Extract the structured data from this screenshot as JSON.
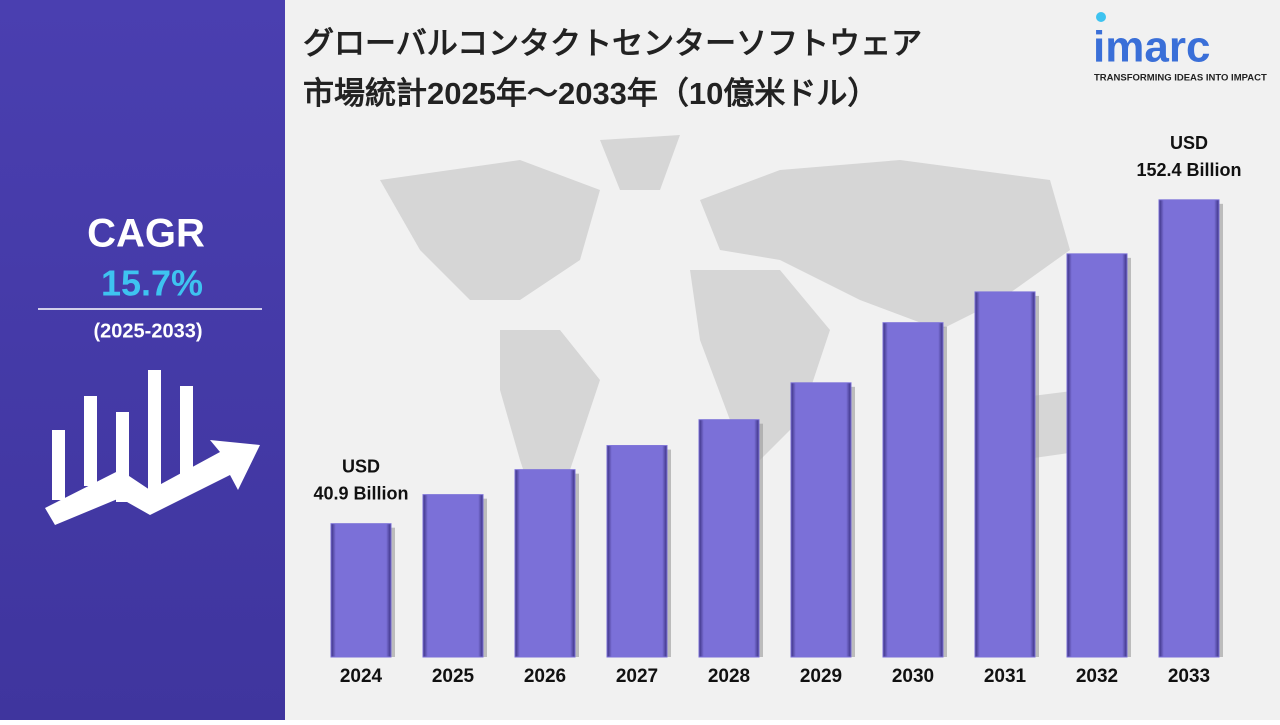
{
  "chart_data": {
    "type": "bar",
    "title": [
      "グローバルコンタクトセンターソフトウェア",
      "市場統計2025年～2033年（10億米ドル）"
    ],
    "categories": [
      "2024",
      "2025",
      "2026",
      "2027",
      "2028",
      "2029",
      "2030",
      "2031",
      "2032",
      "2033"
    ],
    "values": [
      40.9,
      50.9,
      59.5,
      67.8,
      76.7,
      89.4,
      110.1,
      120.7,
      133.8,
      152.4
    ],
    "value_labels": [
      "USD 40.9 Billion",
      null,
      null,
      null,
      null,
      null,
      null,
      null,
      null,
      "USD 152.4 Billion"
    ],
    "color": "#7b70d8",
    "ylim": [
      -5,
      173
    ]
  },
  "sidebar": {
    "label": "CAGR",
    "value": "15.7%",
    "period": "(2025-2033)"
  },
  "logo": {
    "name": "imarc",
    "tagline": "TRANSFORMING IDEAS INTO IMPACT"
  }
}
